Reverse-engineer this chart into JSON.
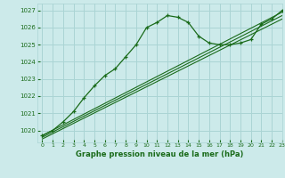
{
  "title": "Graphe pression niveau de la mer (hPa)",
  "bg_color": "#cceaea",
  "grid_color": "#aad4d4",
  "line_color": "#1a6b1a",
  "xlim": [
    -0.5,
    23
  ],
  "ylim": [
    1019.3,
    1027.4
  ],
  "yticks": [
    1020,
    1021,
    1022,
    1023,
    1024,
    1025,
    1026,
    1027
  ],
  "xticks": [
    0,
    1,
    2,
    3,
    4,
    5,
    6,
    7,
    8,
    9,
    10,
    11,
    12,
    13,
    14,
    15,
    16,
    17,
    18,
    19,
    20,
    21,
    22,
    23
  ],
  "main_x": [
    0,
    1,
    2,
    3,
    4,
    5,
    6,
    7,
    8,
    9,
    10,
    11,
    12,
    13,
    14,
    15,
    16,
    17,
    18,
    19,
    20,
    21,
    22,
    23
  ],
  "main_y": [
    1019.7,
    1020.0,
    1020.5,
    1021.1,
    1021.9,
    1022.6,
    1023.2,
    1023.6,
    1024.3,
    1025.0,
    1026.0,
    1026.3,
    1026.7,
    1026.6,
    1026.3,
    1025.5,
    1025.1,
    1025.0,
    1025.0,
    1025.1,
    1025.3,
    1026.2,
    1026.5,
    1027.0
  ],
  "line2_x": [
    0,
    23
  ],
  "line2_y": [
    1019.7,
    1026.9
  ],
  "line3_x": [
    0,
    23
  ],
  "line3_y": [
    1019.6,
    1026.7
  ],
  "line4_x": [
    0,
    23
  ],
  "line4_y": [
    1019.5,
    1026.5
  ]
}
